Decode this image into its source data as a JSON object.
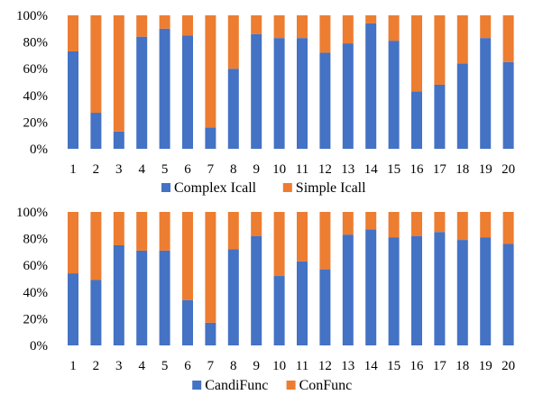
{
  "chart_data": [
    {
      "type": "bar",
      "stacked": true,
      "percent": true,
      "categories": [
        "1",
        "2",
        "3",
        "4",
        "5",
        "6",
        "7",
        "8",
        "9",
        "10",
        "11",
        "12",
        "13",
        "14",
        "15",
        "16",
        "17",
        "18",
        "19",
        "20"
      ],
      "series": [
        {
          "name": "Complex Icall",
          "color": "#4472C4",
          "values": [
            73,
            27,
            13,
            84,
            90,
            85,
            16,
            60,
            86,
            83,
            83,
            72,
            79,
            94,
            81,
            43,
            48,
            64,
            83,
            65
          ]
        },
        {
          "name": "Simple Icall",
          "color": "#ED7D31",
          "values": [
            27,
            73,
            87,
            16,
            10,
            15,
            84,
            40,
            14,
            17,
            17,
            28,
            21,
            6,
            19,
            57,
            52,
            36,
            17,
            35
          ]
        }
      ],
      "y_ticks": [
        "0%",
        "20%",
        "40%",
        "60%",
        "80%",
        "100%"
      ],
      "ylim": [
        0,
        100
      ],
      "legend_position": "bottom"
    },
    {
      "type": "bar",
      "stacked": true,
      "percent": true,
      "categories": [
        "1",
        "2",
        "3",
        "4",
        "5",
        "6",
        "7",
        "8",
        "9",
        "10",
        "11",
        "12",
        "13",
        "14",
        "15",
        "16",
        "17",
        "18",
        "19",
        "20"
      ],
      "series": [
        {
          "name": "CandiFunc",
          "color": "#4472C4",
          "values": [
            54,
            49,
            75,
            71,
            71,
            34,
            17,
            72,
            82,
            52,
            63,
            57,
            83,
            87,
            81,
            82,
            85,
            79,
            81,
            76
          ]
        },
        {
          "name": "ConFunc",
          "color": "#ED7D31",
          "values": [
            46,
            51,
            25,
            29,
            29,
            66,
            83,
            28,
            18,
            48,
            37,
            43,
            17,
            13,
            19,
            18,
            15,
            21,
            19,
            24
          ]
        }
      ],
      "y_ticks": [
        "0%",
        "20%",
        "40%",
        "60%",
        "80%",
        "100%"
      ],
      "ylim": [
        0,
        100
      ],
      "legend_position": "bottom"
    }
  ]
}
